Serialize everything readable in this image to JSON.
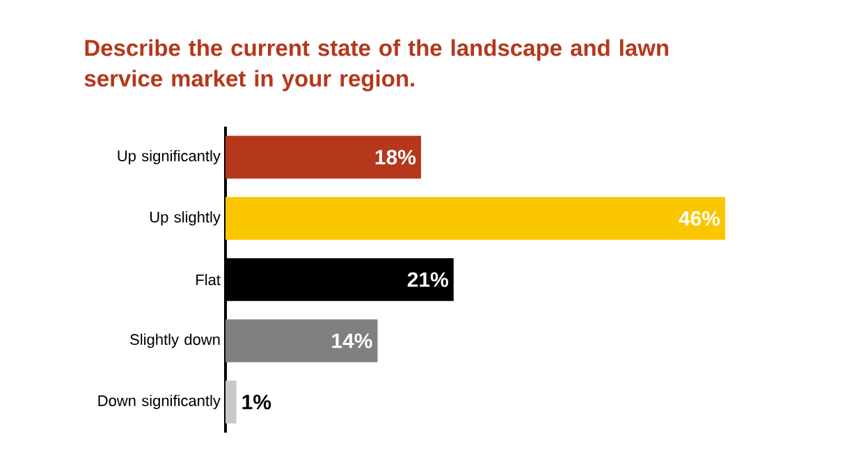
{
  "chart_data": {
    "type": "bar",
    "orientation": "horizontal",
    "title": "Describe the current state of the landscape and lawn service market in your region.",
    "categories": [
      "Up significantly",
      "Up slightly",
      "Flat",
      "Slightly down",
      "Down significantly"
    ],
    "values": [
      18,
      46,
      21,
      14,
      1
    ],
    "colors": [
      "#b5371c",
      "#f9c600",
      "#000000",
      "#808080",
      "#c8c8c8"
    ],
    "value_labels": [
      "18%",
      "46%",
      "21%",
      "14%",
      "1%"
    ]
  }
}
